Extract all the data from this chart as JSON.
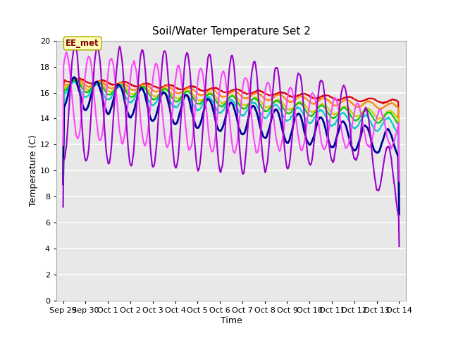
{
  "title": "Soil/Water Temperature Set 2",
  "xlabel": "Time",
  "ylabel": "Temperature (C)",
  "ylim": [
    0,
    20
  ],
  "yticks": [
    0,
    2,
    4,
    6,
    8,
    10,
    12,
    14,
    16,
    18,
    20
  ],
  "x_tick_labels": [
    "Sep 29",
    "Sep 30",
    "Oct 1",
    "Oct 2",
    "Oct 3",
    "Oct 4",
    "Oct 5",
    "Oct 6",
    "Oct 7",
    "Oct 8",
    "Oct 9",
    "Oct 10",
    "Oct 11",
    "Oct 12",
    "Oct 13",
    "Oct 14"
  ],
  "x_tick_positions": [
    0,
    1,
    2,
    3,
    4,
    5,
    6,
    7,
    8,
    9,
    10,
    11,
    12,
    13,
    14,
    15
  ],
  "annotation_text": "EE_met",
  "plot_bg_color": "#e8e8e8",
  "fig_bg_color": "#ffffff",
  "series_colors": {
    "-16cm": "#dd0000",
    "-8cm": "#ff8800",
    "-2cm": "#cccc00",
    "+2cm": "#00cc00",
    "+8cm": "#00cccc",
    "+16cm": "#000099",
    "+32cm": "#ff44ff",
    "+64cm": "#9900cc"
  },
  "series_lw": {
    "-16cm": 1.5,
    "-8cm": 1.5,
    "-2cm": 1.5,
    "+2cm": 1.5,
    "+8cm": 1.5,
    "+16cm": 2.0,
    "+32cm": 1.5,
    "+64cm": 1.5
  }
}
